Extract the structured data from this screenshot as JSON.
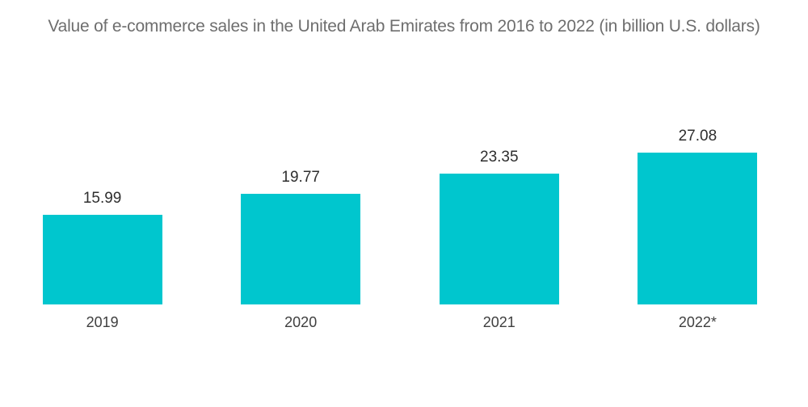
{
  "chart_data": {
    "type": "bar",
    "title": "Value of e-commerce sales in the United Arab Emirates from 2016 to 2022 (in billion U.S. dollars)",
    "categories": [
      "2019",
      "2020",
      "2021",
      "2022*"
    ],
    "values": [
      15.99,
      19.77,
      23.35,
      27.08
    ],
    "value_labels": [
      "15.99",
      "19.77",
      "23.35",
      "27.08"
    ],
    "xlabel": "",
    "ylabel": "",
    "ylim": [
      0,
      30
    ],
    "grid": false,
    "legend": false,
    "axes_visible": false,
    "bar_color": "#00C6CE",
    "background_color": "#ffffff",
    "title_color": "#6e6e6e",
    "value_label_color": "#2e2e2e",
    "category_label_color": "#3f3f3f"
  }
}
